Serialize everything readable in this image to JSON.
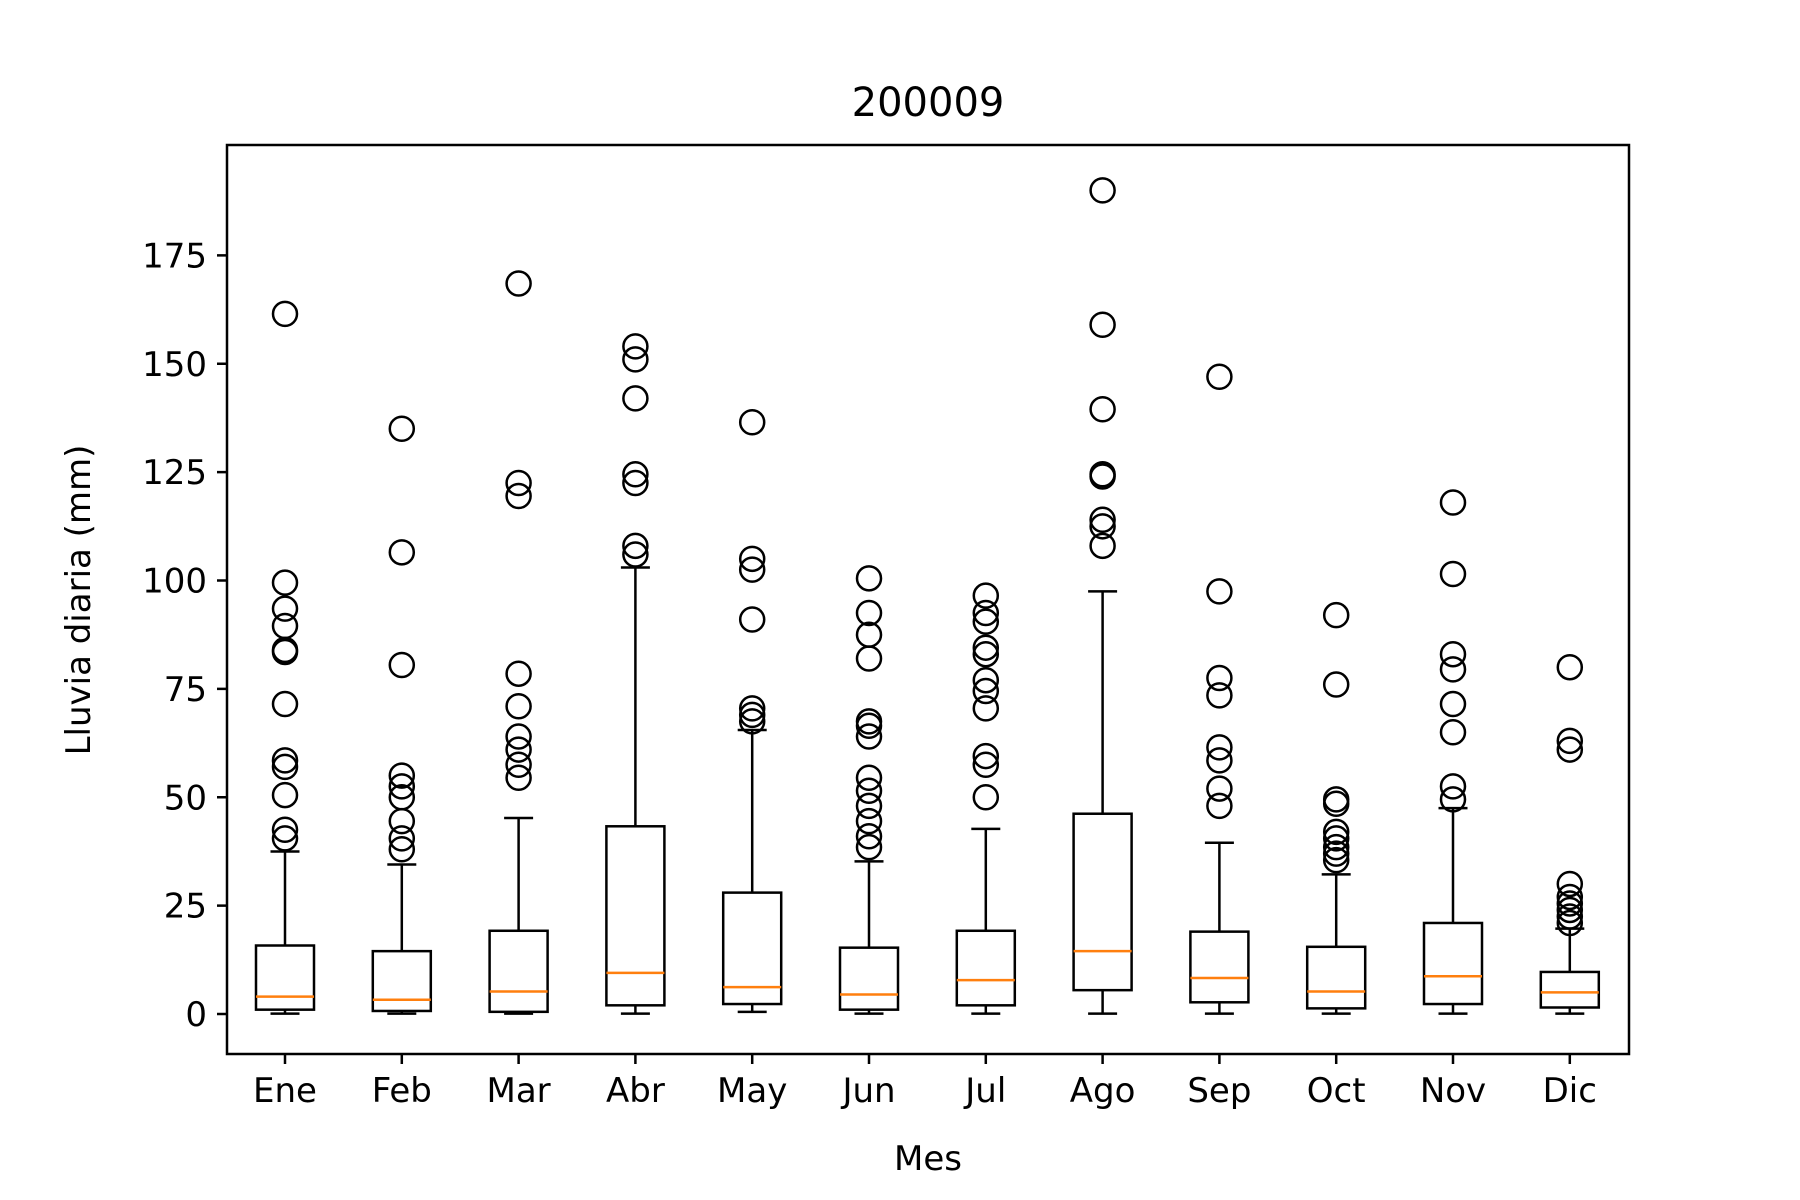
{
  "chart_data": {
    "type": "box",
    "title": "200009",
    "xlabel": "Mes",
    "ylabel": "Lluvia diaria (mm)",
    "ylim": [
      -9.5,
      200
    ],
    "yticks": [
      0,
      25,
      50,
      75,
      100,
      125,
      150,
      175
    ],
    "grid": false,
    "colors": {
      "box": "#000000",
      "median": "#ff7f0e",
      "flier": "#000000"
    },
    "categories": [
      "Ene",
      "Feb",
      "Mar",
      "Abr",
      "May",
      "Jun",
      "Jul",
      "Ago",
      "Sep",
      "Oct",
      "Nov",
      "Dic"
    ],
    "boxes": [
      {
        "whislo": 0.1,
        "q1": 1.0,
        "med": 4.0,
        "q3": 15.8,
        "whishi": 37.5,
        "fliers": [
          40.5,
          42.5,
          50.5,
          57.0,
          58.5,
          71.5,
          83.5,
          84.0,
          89.5,
          93.5,
          99.5,
          161.5
        ]
      },
      {
        "whislo": 0.1,
        "q1": 0.7,
        "med": 3.3,
        "q3": 14.5,
        "whishi": 34.5,
        "fliers": [
          38.0,
          40.5,
          44.5,
          50.0,
          52.5,
          55.0,
          80.5,
          106.5,
          135.0
        ]
      },
      {
        "whislo": 0.1,
        "q1": 0.5,
        "med": 5.2,
        "q3": 19.2,
        "whishi": 45.2,
        "fliers": [
          54.5,
          57.5,
          61.0,
          64.0,
          71.0,
          78.5,
          119.5,
          122.5,
          168.5
        ]
      },
      {
        "whislo": 0.1,
        "q1": 2.0,
        "med": 9.5,
        "q3": 43.3,
        "whishi": 103.0,
        "fliers": [
          106.0,
          108.0,
          122.5,
          124.5,
          142.0,
          151.0,
          154.0
        ]
      },
      {
        "whislo": 0.5,
        "q1": 2.3,
        "med": 6.2,
        "q3": 28.0,
        "whishi": 65.5,
        "fliers": [
          67.5,
          69.0,
          70.5,
          91.0,
          102.5,
          105.0,
          136.5
        ]
      },
      {
        "whislo": 0.1,
        "q1": 1.0,
        "med": 4.5,
        "q3": 15.3,
        "whishi": 35.2,
        "fliers": [
          38.5,
          41.0,
          44.5,
          48.0,
          51.5,
          54.5,
          64.0,
          66.5,
          67.5,
          82.0,
          87.5,
          92.5,
          100.5
        ]
      },
      {
        "whislo": 0.1,
        "q1": 2.0,
        "med": 7.8,
        "q3": 19.2,
        "whishi": 42.7,
        "fliers": [
          50.0,
          57.5,
          59.5,
          70.5,
          74.5,
          77.0,
          83.0,
          84.5,
          90.5,
          92.5,
          96.5
        ]
      },
      {
        "whislo": 0.1,
        "q1": 5.5,
        "med": 14.5,
        "q3": 46.2,
        "whishi": 97.5,
        "fliers": [
          108.0,
          112.5,
          114.0,
          124.5,
          124.0,
          139.5,
          159.0,
          190.0
        ]
      },
      {
        "whislo": 0.1,
        "q1": 2.7,
        "med": 8.3,
        "q3": 19.0,
        "whishi": 39.5,
        "fliers": [
          48.0,
          52.0,
          58.5,
          61.5,
          73.5,
          77.5,
          97.5,
          147.0
        ]
      },
      {
        "whislo": 0.1,
        "q1": 1.3,
        "med": 5.2,
        "q3": 15.5,
        "whishi": 32.2,
        "fliers": [
          35.5,
          37.0,
          38.5,
          40.5,
          42.0,
          48.5,
          49.5,
          76.0,
          92.0
        ]
      },
      {
        "whislo": 0.1,
        "q1": 2.3,
        "med": 8.7,
        "q3": 21.0,
        "whishi": 47.5,
        "fliers": [
          49.5,
          52.5,
          65.0,
          71.5,
          79.5,
          83.0,
          101.5,
          118.0
        ]
      },
      {
        "whislo": 0.1,
        "q1": 1.5,
        "med": 5.0,
        "q3": 9.7,
        "whishi": 19.7,
        "fliers": [
          21.0,
          22.5,
          24.0,
          25.5,
          27.0,
          30.0,
          61.0,
          63.0,
          80.0
        ]
      }
    ]
  }
}
